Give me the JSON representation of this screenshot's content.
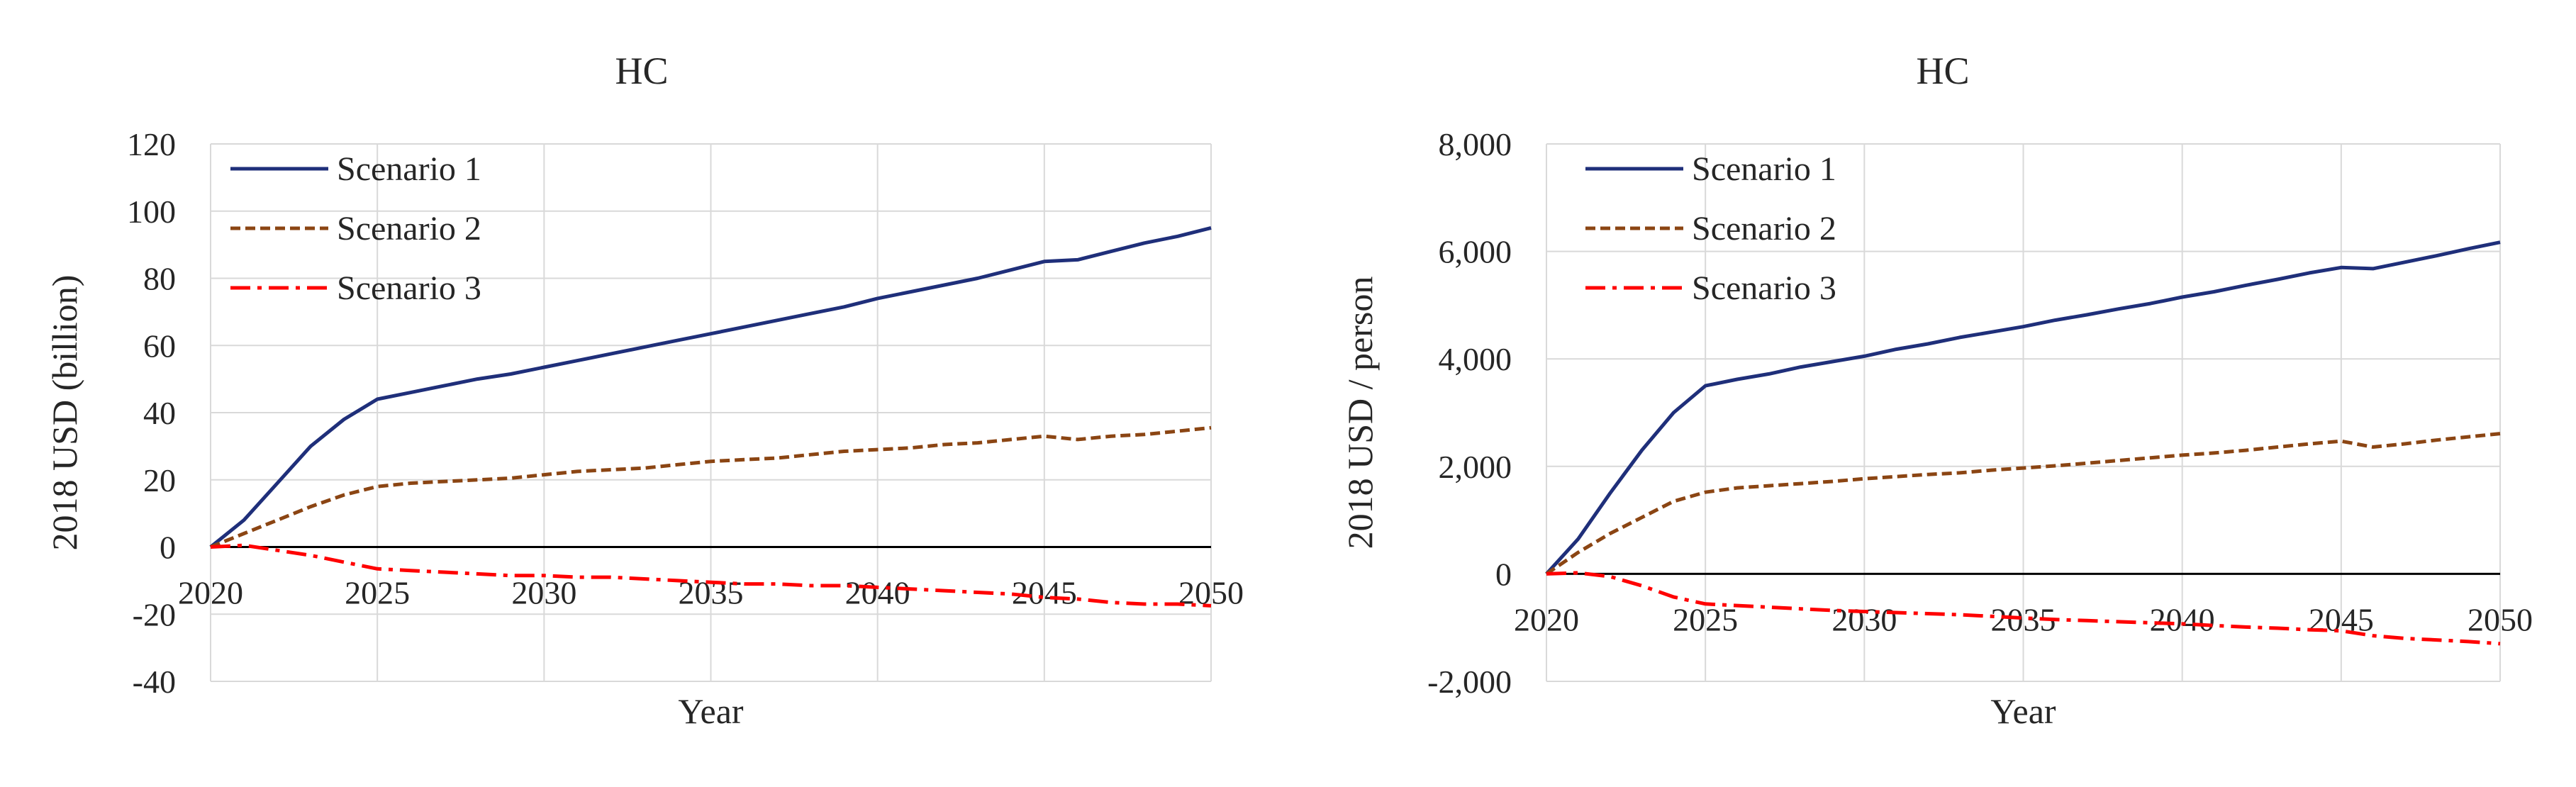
{
  "chart_data": [
    {
      "type": "line",
      "title": "HC",
      "xlabel": "Year",
      "ylabel": "2018 USD (billion)",
      "xlim": [
        2020,
        2050
      ],
      "ylim": [
        -40,
        120
      ],
      "x_ticks": [
        "2020",
        "2025",
        "2030",
        "2035",
        "2040",
        "2045",
        "2050"
      ],
      "y_ticks": [
        "120",
        "100",
        "80",
        "60",
        "40",
        "20",
        "0",
        "-20",
        "-40"
      ],
      "grid": true,
      "legend_position": "top-left",
      "series": [
        {
          "name": "Scenario 1",
          "color": "#1f2f7a",
          "dash": "solid",
          "x": [
            2020,
            2021,
            2022,
            2023,
            2024,
            2025,
            2026,
            2027,
            2028,
            2029,
            2030,
            2031,
            2032,
            2033,
            2034,
            2035,
            2036,
            2037,
            2038,
            2039,
            2040,
            2041,
            2042,
            2043,
            2044,
            2045,
            2046,
            2047,
            2048,
            2049,
            2050
          ],
          "values": [
            0,
            8,
            19,
            30,
            38,
            44,
            46,
            48,
            50,
            51.5,
            53.5,
            55.5,
            57.5,
            59.5,
            61.5,
            63.5,
            65.5,
            67.5,
            69.5,
            71.5,
            74,
            76,
            78,
            80,
            82.5,
            85,
            85.5,
            88,
            90.5,
            92.5,
            95
          ]
        },
        {
          "name": "Scenario 2",
          "color": "#8b4513",
          "dash": "dashed",
          "x": [
            2020,
            2021,
            2022,
            2023,
            2024,
            2025,
            2026,
            2027,
            2028,
            2029,
            2030,
            2031,
            2032,
            2033,
            2034,
            2035,
            2036,
            2037,
            2038,
            2039,
            2040,
            2041,
            2042,
            2043,
            2044,
            2045,
            2046,
            2047,
            2048,
            2049,
            2050
          ],
          "values": [
            0,
            4,
            8,
            12,
            15.5,
            18,
            19,
            19.5,
            20,
            20.5,
            21.5,
            22.5,
            23,
            23.5,
            24.5,
            25.5,
            26,
            26.5,
            27.5,
            28.5,
            29,
            29.5,
            30.5,
            31,
            32,
            33,
            32,
            33,
            33.5,
            34.5,
            35.5
          ]
        },
        {
          "name": "Scenario 3",
          "color": "#ff0000",
          "dash": "dashdot",
          "x": [
            2020,
            2021,
            2022,
            2023,
            2024,
            2025,
            2026,
            2027,
            2028,
            2029,
            2030,
            2031,
            2032,
            2033,
            2034,
            2035,
            2036,
            2037,
            2038,
            2039,
            2040,
            2041,
            2042,
            2043,
            2044,
            2045,
            2046,
            2047,
            2048,
            2049,
            2050
          ],
          "values": [
            0,
            0.5,
            -1,
            -2.5,
            -4.5,
            -6.5,
            -7,
            -7.5,
            -8,
            -8.5,
            -8.5,
            -9,
            -9,
            -9.5,
            -10,
            -10.5,
            -11,
            -11,
            -11.5,
            -11.5,
            -12,
            -12.5,
            -13,
            -13.5,
            -14,
            -15,
            -15.5,
            -16.5,
            -17,
            -17,
            -17.5
          ]
        }
      ]
    },
    {
      "type": "line",
      "title": "HC",
      "xlabel": "Year",
      "ylabel": "2018 USD / person",
      "xlim": [
        2020,
        2050
      ],
      "ylim": [
        -2000,
        8000
      ],
      "x_ticks": [
        "2020",
        "2025",
        "2030",
        "2035",
        "2040",
        "2045",
        "2050"
      ],
      "y_ticks": [
        "8,000",
        "6,000",
        "4,000",
        "2,000",
        "0",
        "-2,000"
      ],
      "grid": true,
      "legend_position": "top-left",
      "series": [
        {
          "name": "Scenario 1",
          "color": "#1f2f7a",
          "dash": "solid",
          "x": [
            2020,
            2021,
            2022,
            2023,
            2024,
            2025,
            2026,
            2027,
            2028,
            2029,
            2030,
            2031,
            2032,
            2033,
            2034,
            2035,
            2036,
            2037,
            2038,
            2039,
            2040,
            2041,
            2042,
            2043,
            2044,
            2045,
            2046,
            2047,
            2048,
            2049,
            2050
          ],
          "values": [
            0,
            650,
            1500,
            2300,
            3000,
            3500,
            3620,
            3720,
            3850,
            3950,
            4050,
            4180,
            4280,
            4400,
            4500,
            4600,
            4720,
            4820,
            4930,
            5030,
            5150,
            5250,
            5370,
            5480,
            5600,
            5700,
            5680,
            5800,
            5920,
            6050,
            6170
          ]
        },
        {
          "name": "Scenario 2",
          "color": "#8b4513",
          "dash": "dashed",
          "x": [
            2020,
            2021,
            2022,
            2023,
            2024,
            2025,
            2026,
            2027,
            2028,
            2029,
            2030,
            2031,
            2032,
            2033,
            2034,
            2035,
            2036,
            2037,
            2038,
            2039,
            2040,
            2041,
            2042,
            2043,
            2044,
            2045,
            2046,
            2047,
            2048,
            2049,
            2050
          ],
          "values": [
            0,
            400,
            750,
            1050,
            1350,
            1520,
            1600,
            1640,
            1680,
            1720,
            1770,
            1810,
            1850,
            1880,
            1930,
            1970,
            2010,
            2060,
            2110,
            2160,
            2210,
            2250,
            2300,
            2360,
            2420,
            2470,
            2360,
            2420,
            2490,
            2550,
            2610
          ]
        },
        {
          "name": "Scenario 3",
          "color": "#ff0000",
          "dash": "dashdot",
          "x": [
            2020,
            2021,
            2022,
            2023,
            2024,
            2025,
            2026,
            2027,
            2028,
            2029,
            2030,
            2031,
            2032,
            2033,
            2034,
            2035,
            2036,
            2037,
            2038,
            2039,
            2040,
            2041,
            2042,
            2043,
            2044,
            2045,
            2046,
            2047,
            2048,
            2049,
            2050
          ],
          "values": [
            0,
            20,
            -50,
            -220,
            -430,
            -560,
            -590,
            -620,
            -650,
            -680,
            -700,
            -720,
            -740,
            -760,
            -790,
            -820,
            -850,
            -870,
            -890,
            -910,
            -930,
            -960,
            -990,
            -1010,
            -1040,
            -1060,
            -1150,
            -1200,
            -1230,
            -1260,
            -1300
          ]
        }
      ]
    }
  ]
}
